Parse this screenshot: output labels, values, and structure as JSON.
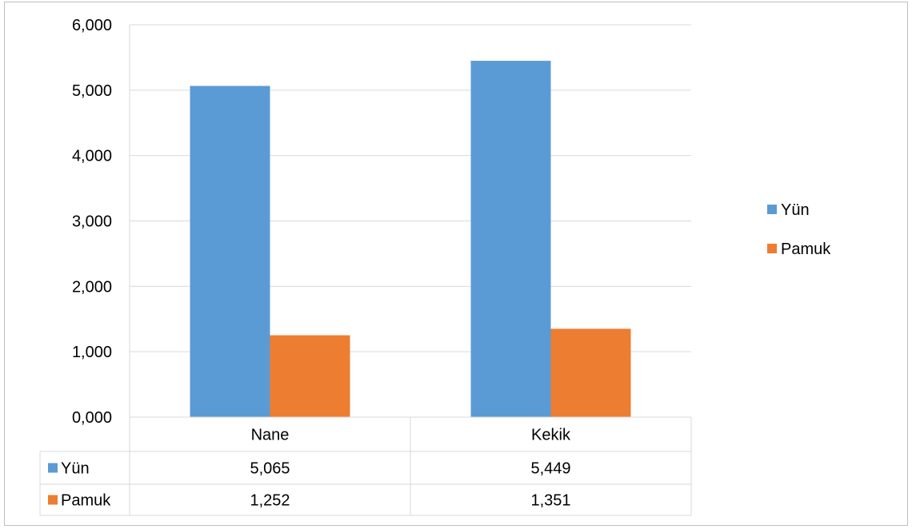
{
  "chart_data": {
    "type": "bar",
    "title": "",
    "xlabel": "",
    "ylabel": "",
    "categories": [
      "Nane",
      "Kekik"
    ],
    "series": [
      {
        "name": "Yün",
        "values": [
          5.065,
          5.449
        ],
        "color": "#5B9BD5"
      },
      {
        "name": "Pamuk",
        "values": [
          1.252,
          1.351
        ],
        "color": "#ED7D31"
      }
    ],
    "ylim": [
      0,
      6
    ],
    "yticks": [
      "0,000",
      "1,000",
      "2,000",
      "3,000",
      "4,000",
      "5,000",
      "6,000"
    ],
    "grid": true,
    "legend": "right",
    "data_table": {
      "rows": [
        {
          "name": "Yün",
          "values": [
            "5,065",
            "5,449"
          ]
        },
        {
          "name": "Pamuk",
          "values": [
            "1,252",
            "1,351"
          ]
        }
      ]
    }
  }
}
